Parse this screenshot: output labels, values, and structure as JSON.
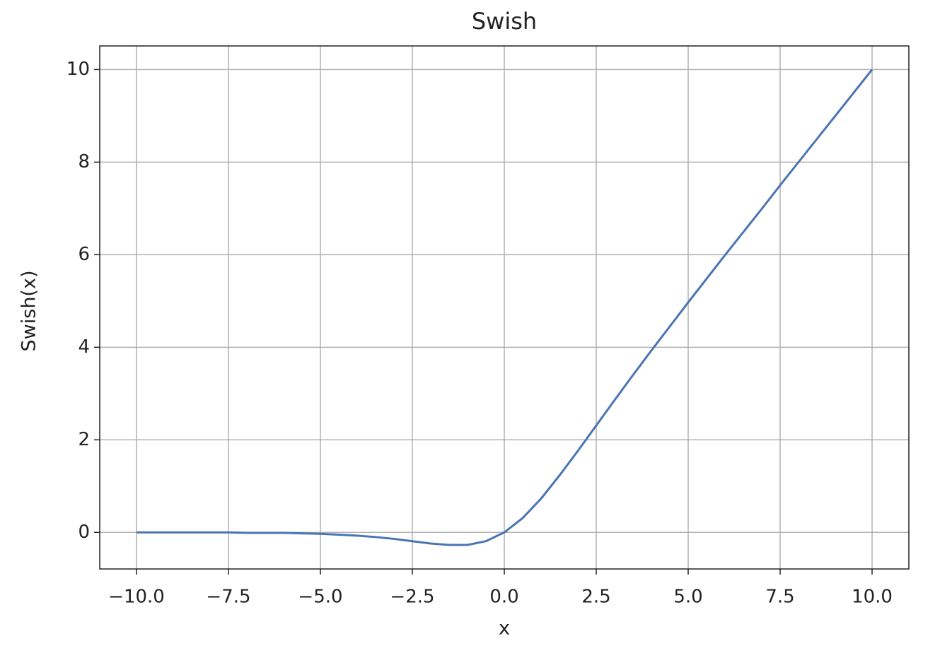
{
  "chart_data": {
    "type": "line",
    "title": "Swish",
    "x_label": "x",
    "y_label": "Swish(x)",
    "x": [
      -10,
      -9.5,
      -9,
      -8.5,
      -8,
      -7.5,
      -7,
      -6.5,
      -6,
      -5.5,
      -5,
      -4.5,
      -4,
      -3.5,
      -3,
      -2.5,
      -2,
      -1.5,
      -1,
      -0.5,
      0,
      0.5,
      1,
      1.5,
      2,
      2.5,
      3,
      3.5,
      4,
      4.5,
      5,
      5.5,
      6,
      6.5,
      7,
      7.5,
      8,
      8.5,
      9,
      9.5,
      10
    ],
    "series": [
      {
        "color": "#4a74b4",
        "values": [
          0,
          0,
          0,
          0,
          0,
          0,
          -0.01,
          -0.01,
          -0.01,
          -0.02,
          -0.03,
          -0.05,
          -0.07,
          -0.1,
          -0.14,
          -0.19,
          -0.24,
          -0.27,
          -0.27,
          -0.19,
          0,
          0.31,
          0.73,
          1.23,
          1.76,
          2.31,
          2.86,
          3.4,
          3.93,
          4.45,
          4.97,
          5.48,
          5.99,
          6.49,
          6.99,
          7.5,
          8,
          8.5,
          9,
          9.5,
          10
        ]
      }
    ],
    "xlim": [
      -11,
      11
    ],
    "ylim": [
      -0.79,
      10.51
    ],
    "xticks": [
      {
        "value": -10,
        "label": "−10.0"
      },
      {
        "value": -7.5,
        "label": "−7.5"
      },
      {
        "value": -5,
        "label": "−5.0"
      },
      {
        "value": -2.5,
        "label": "−2.5"
      },
      {
        "value": 0,
        "label": "0.0"
      },
      {
        "value": 2.5,
        "label": "2.5"
      },
      {
        "value": 5,
        "label": "5.0"
      },
      {
        "value": 7.5,
        "label": "7.5"
      },
      {
        "value": 10,
        "label": "10.0"
      }
    ],
    "yticks": [
      0,
      2,
      4,
      6,
      8,
      10
    ],
    "grid": true
  }
}
